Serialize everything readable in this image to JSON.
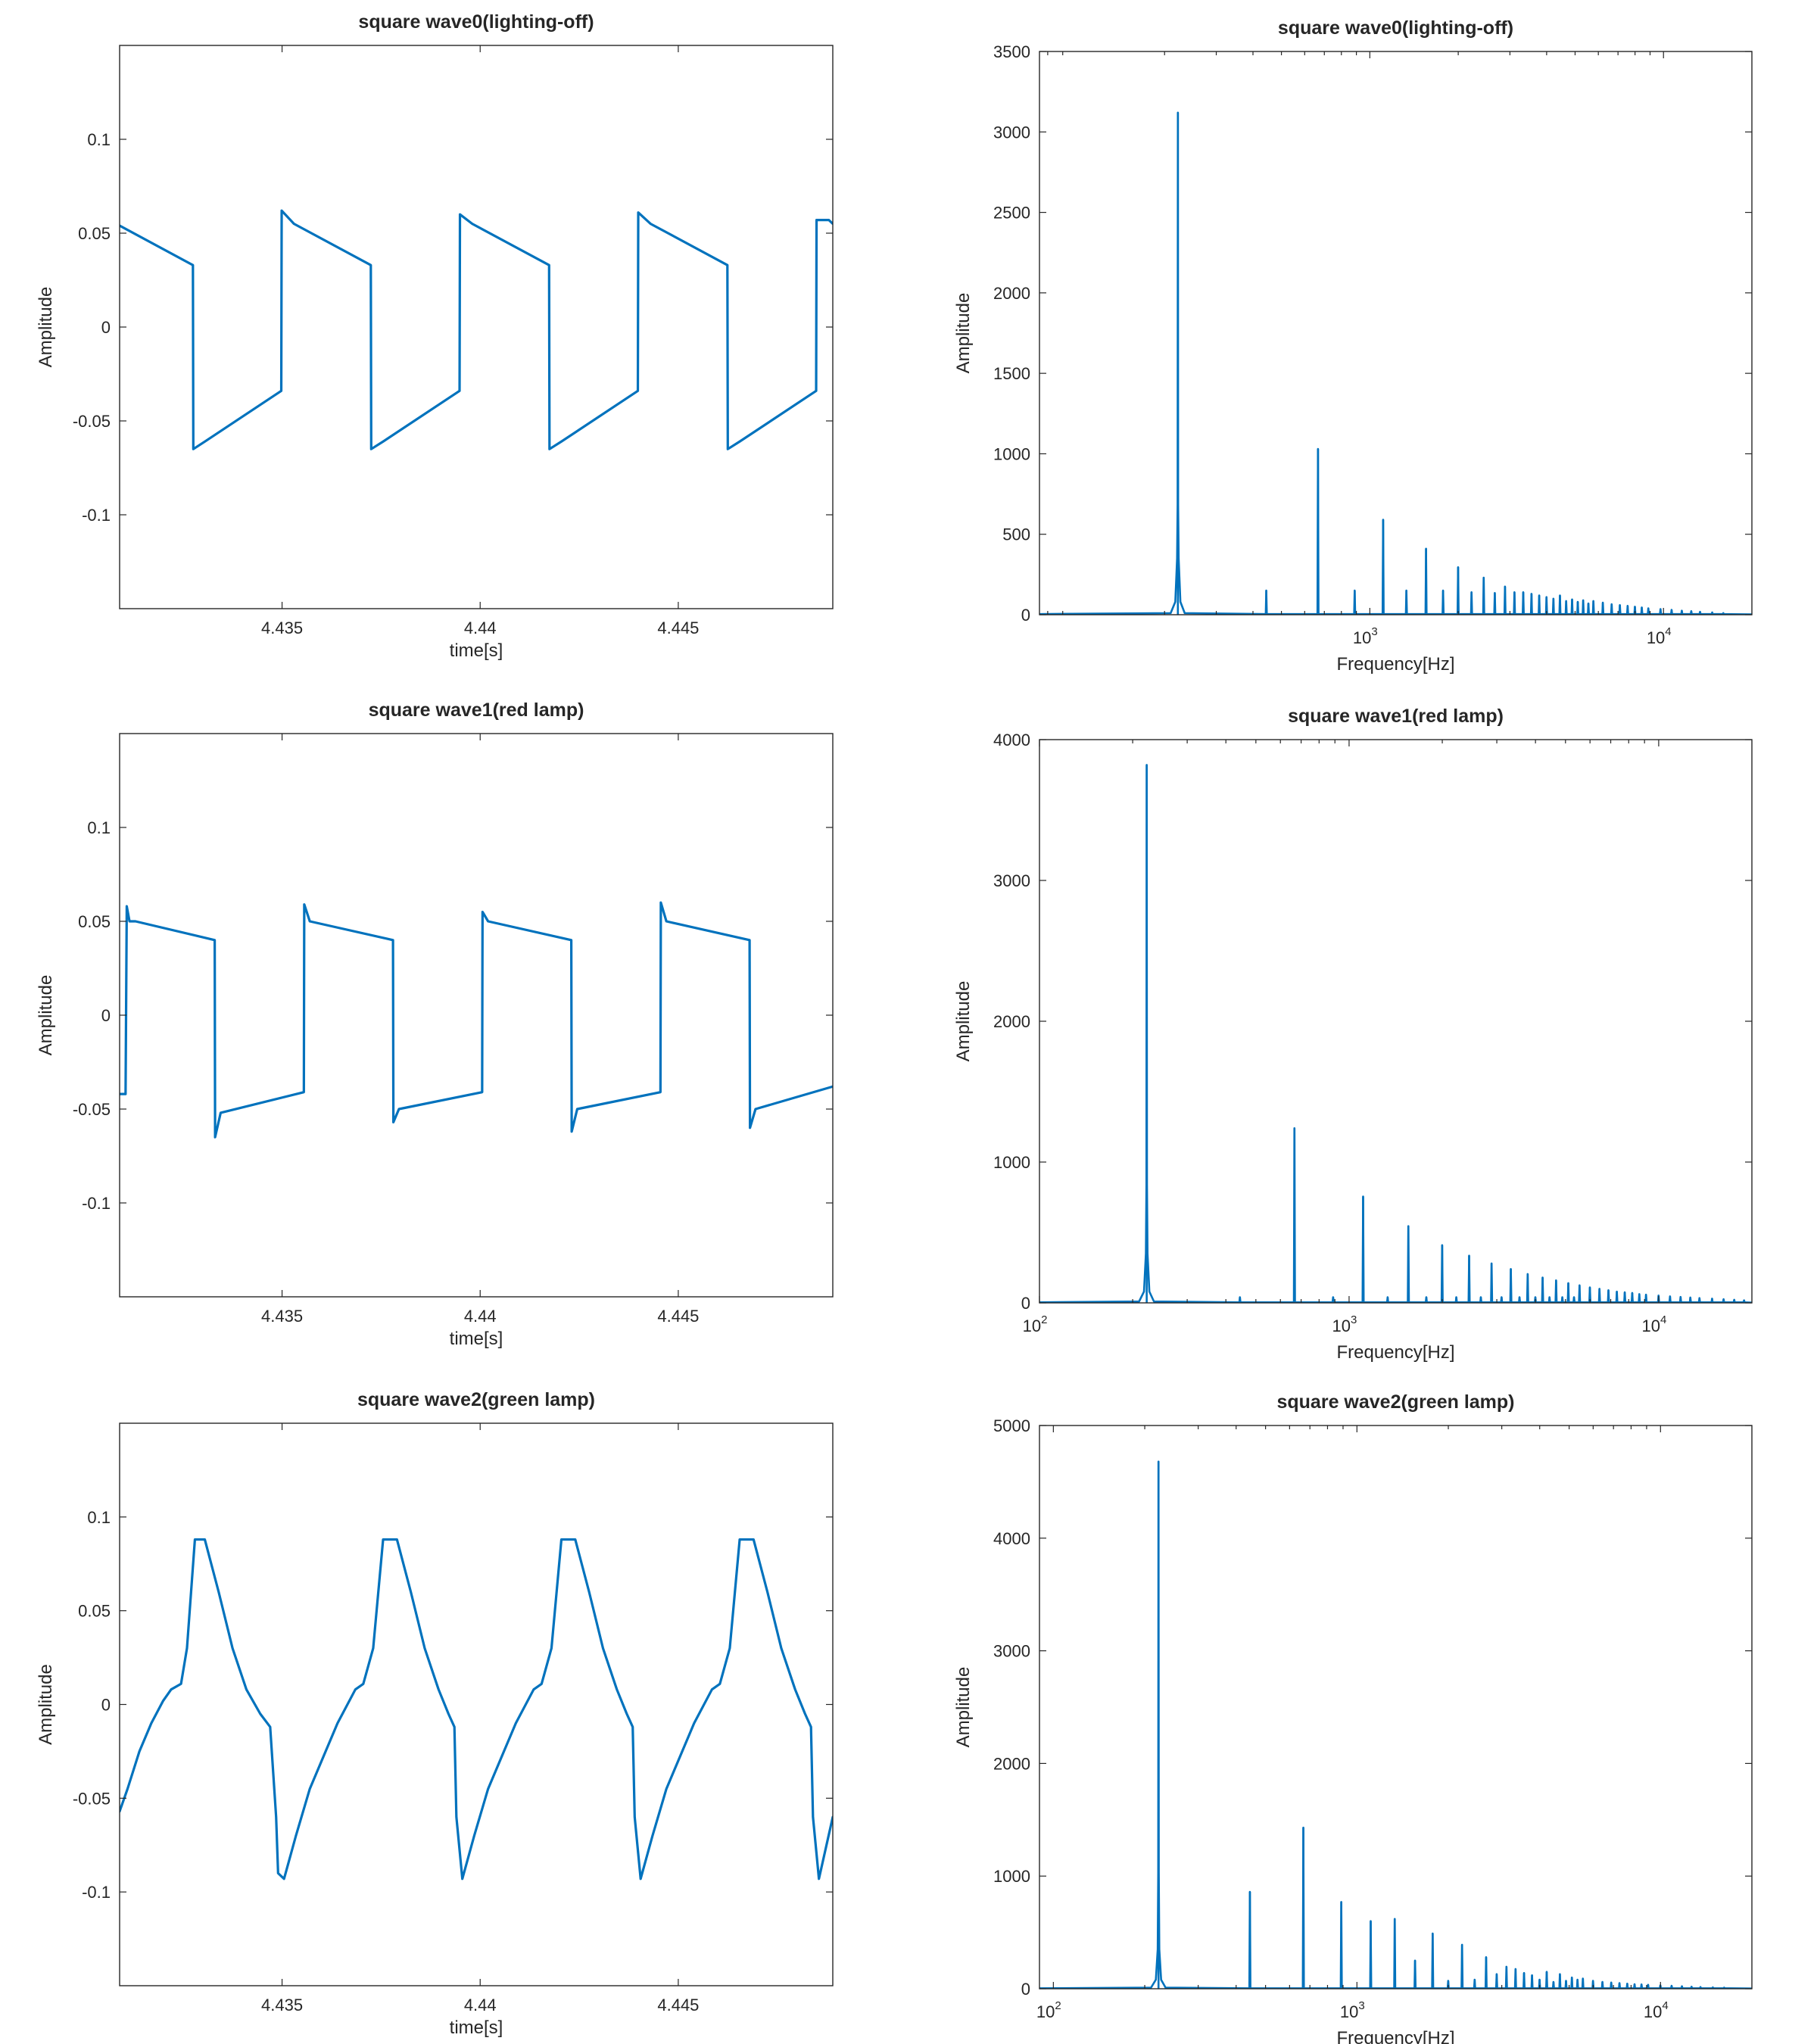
{
  "colors": {
    "series": "#0072BD",
    "axes": "#262626",
    "background": "#ffffff"
  },
  "chart_data": [
    {
      "type": "line",
      "title": "square wave0(lighting-off)",
      "xlabel": "time[s]",
      "ylabel": "Amplitude",
      "xlim": [
        4.4309,
        4.4489
      ],
      "ylim": [
        -0.15,
        0.15
      ],
      "xticks": [
        4.435,
        4.44,
        4.445
      ],
      "xtick_labels": [
        "4.435",
        "4.44",
        "4.445"
      ],
      "yticks": [
        -0.1,
        -0.05,
        0,
        0.05,
        0.1
      ],
      "ytick_labels": [
        "-0.1",
        "-0.05",
        "0",
        "0.05",
        "0.1"
      ],
      "grid": false,
      "series": [
        {
          "x": [
            4.4309,
            4.43275,
            4.43276,
            4.43305,
            4.43498,
            4.43499,
            4.4353,
            4.43724,
            4.43725,
            4.43755,
            4.43948,
            4.43949,
            4.4398,
            4.44174,
            4.44175,
            4.44205,
            4.44398,
            4.44399,
            4.4443,
            4.44624,
            4.44625,
            4.44655,
            4.44848,
            4.44849,
            4.4488,
            4.4489
          ],
          "y": [
            0.054,
            0.033,
            -0.065,
            -0.061,
            -0.034,
            0.062,
            0.055,
            0.033,
            -0.065,
            -0.061,
            -0.034,
            0.06,
            0.055,
            0.033,
            -0.065,
            -0.061,
            -0.034,
            0.061,
            0.055,
            0.033,
            -0.065,
            -0.061,
            -0.034,
            0.057,
            0.057,
            0.055
          ]
        }
      ]
    },
    {
      "type": "line",
      "title": "square wave0(lighting-off)",
      "xlabel": "Frequency[Hz]",
      "ylabel": "Amplitude",
      "xscale": "log",
      "xlim": [
        75,
        20000
      ],
      "ylim": [
        0,
        3500
      ],
      "xticks": [
        1000,
        10000
      ],
      "xtick_labels": [
        "10",
        "10"
      ],
      "xtick_exponents": [
        "3",
        "4"
      ],
      "yticks": [
        0,
        500,
        1000,
        1500,
        2000,
        2500,
        3000,
        3500
      ],
      "ytick_labels": [
        "0",
        "500",
        "1000",
        "1500",
        "2000",
        "2500",
        "3000",
        "3500"
      ],
      "grid": false,
      "fundamental_hz": 222,
      "peaks": [
        {
          "x": 222,
          "y": 3120
        },
        {
          "x": 444,
          "y": 150
        },
        {
          "x": 666,
          "y": 1030
        },
        {
          "x": 888,
          "y": 150
        },
        {
          "x": 1110,
          "y": 590
        },
        {
          "x": 1332,
          "y": 150
        },
        {
          "x": 1554,
          "y": 410
        },
        {
          "x": 1776,
          "y": 150
        },
        {
          "x": 1998,
          "y": 295
        },
        {
          "x": 2220,
          "y": 140
        },
        {
          "x": 2442,
          "y": 230
        },
        {
          "x": 2664,
          "y": 135
        },
        {
          "x": 2886,
          "y": 175
        },
        {
          "x": 3108,
          "y": 140
        },
        {
          "x": 3330,
          "y": 140
        },
        {
          "x": 3552,
          "y": 130
        },
        {
          "x": 3774,
          "y": 120
        },
        {
          "x": 3996,
          "y": 110
        },
        {
          "x": 4218,
          "y": 100
        },
        {
          "x": 4440,
          "y": 120
        },
        {
          "x": 4662,
          "y": 85
        },
        {
          "x": 4884,
          "y": 95
        },
        {
          "x": 5106,
          "y": 80
        },
        {
          "x": 5328,
          "y": 90
        },
        {
          "x": 5550,
          "y": 70
        },
        {
          "x": 5772,
          "y": 85
        },
        {
          "x": 6216,
          "y": 75
        },
        {
          "x": 6660,
          "y": 65
        },
        {
          "x": 7104,
          "y": 60
        },
        {
          "x": 7548,
          "y": 55
        },
        {
          "x": 7992,
          "y": 50
        },
        {
          "x": 8436,
          "y": 45
        },
        {
          "x": 8880,
          "y": 40
        },
        {
          "x": 9768,
          "y": 35
        },
        {
          "x": 10656,
          "y": 30
        },
        {
          "x": 11544,
          "y": 25
        },
        {
          "x": 12432,
          "y": 22
        },
        {
          "x": 13320,
          "y": 18
        },
        {
          "x": 14652,
          "y": 14
        },
        {
          "x": 15984,
          "y": 10
        }
      ]
    },
    {
      "type": "line",
      "title": "square wave1(red lamp)",
      "xlabel": "time[s]",
      "ylabel": "Amplitude",
      "xlim": [
        4.4309,
        4.4489
      ],
      "ylim": [
        -0.15,
        0.15
      ],
      "xticks": [
        4.435,
        4.44,
        4.445
      ],
      "xtick_labels": [
        "4.435",
        "4.44",
        "4.445"
      ],
      "yticks": [
        -0.1,
        -0.05,
        0,
        0.05,
        0.1
      ],
      "ytick_labels": [
        "-0.1",
        "-0.05",
        "0",
        "0.05",
        "0.1"
      ],
      "grid": false,
      "series": [
        {
          "x": [
            4.4309,
            4.43105,
            4.43108,
            4.43115,
            4.4313,
            4.4333,
            4.43331,
            4.43345,
            4.43555,
            4.43556,
            4.4357,
            4.4378,
            4.43781,
            4.43795,
            4.44005,
            4.44006,
            4.4402,
            4.4423,
            4.44231,
            4.44245,
            4.44455,
            4.44456,
            4.4447,
            4.4468,
            4.44681,
            4.44695,
            4.4489
          ],
          "y": [
            -0.042,
            -0.042,
            0.058,
            0.05,
            0.05,
            0.04,
            -0.065,
            -0.052,
            -0.041,
            0.059,
            0.05,
            0.04,
            -0.057,
            -0.05,
            -0.041,
            0.055,
            0.05,
            0.04,
            -0.062,
            -0.05,
            -0.041,
            0.06,
            0.05,
            0.04,
            -0.06,
            -0.05,
            -0.038
          ]
        }
      ]
    },
    {
      "type": "line",
      "title": "square wave1(red lamp)",
      "xlabel": "Frequency[Hz]",
      "ylabel": "Amplitude",
      "xscale": "log",
      "xlim": [
        100,
        20000
      ],
      "ylim": [
        0,
        4000
      ],
      "xticks": [
        100,
        1000,
        10000
      ],
      "xtick_labels": [
        "10",
        "10",
        "10"
      ],
      "xtick_exponents": [
        "2",
        "3",
        "4"
      ],
      "yticks": [
        0,
        1000,
        2000,
        3000,
        4000
      ],
      "ytick_labels": [
        "0",
        "1000",
        "2000",
        "3000",
        "4000"
      ],
      "grid": false,
      "fundamental_hz": 222,
      "peaks": [
        {
          "x": 222,
          "y": 3820
        },
        {
          "x": 444,
          "y": 40
        },
        {
          "x": 666,
          "y": 1240
        },
        {
          "x": 888,
          "y": 40
        },
        {
          "x": 1110,
          "y": 755
        },
        {
          "x": 1332,
          "y": 40
        },
        {
          "x": 1554,
          "y": 545
        },
        {
          "x": 1776,
          "y": 40
        },
        {
          "x": 1998,
          "y": 410
        },
        {
          "x": 2220,
          "y": 40
        },
        {
          "x": 2442,
          "y": 335
        },
        {
          "x": 2664,
          "y": 40
        },
        {
          "x": 2886,
          "y": 280
        },
        {
          "x": 3108,
          "y": 40
        },
        {
          "x": 3330,
          "y": 240
        },
        {
          "x": 3552,
          "y": 40
        },
        {
          "x": 3774,
          "y": 205
        },
        {
          "x": 3996,
          "y": 40
        },
        {
          "x": 4218,
          "y": 180
        },
        {
          "x": 4440,
          "y": 40
        },
        {
          "x": 4662,
          "y": 160
        },
        {
          "x": 4884,
          "y": 40
        },
        {
          "x": 5106,
          "y": 140
        },
        {
          "x": 5328,
          "y": 40
        },
        {
          "x": 5550,
          "y": 125
        },
        {
          "x": 5994,
          "y": 110
        },
        {
          "x": 6438,
          "y": 100
        },
        {
          "x": 6882,
          "y": 90
        },
        {
          "x": 7326,
          "y": 80
        },
        {
          "x": 7770,
          "y": 75
        },
        {
          "x": 8214,
          "y": 70
        },
        {
          "x": 8658,
          "y": 62
        },
        {
          "x": 9102,
          "y": 58
        },
        {
          "x": 9990,
          "y": 52
        },
        {
          "x": 10878,
          "y": 46
        },
        {
          "x": 11766,
          "y": 42
        },
        {
          "x": 12654,
          "y": 38
        },
        {
          "x": 13542,
          "y": 34
        },
        {
          "x": 14874,
          "y": 30
        },
        {
          "x": 16206,
          "y": 26
        },
        {
          "x": 17538,
          "y": 22
        },
        {
          "x": 18870,
          "y": 18
        }
      ]
    },
    {
      "type": "line",
      "title": "square wave2(green lamp)",
      "xlabel": "time[s]",
      "ylabel": "Amplitude",
      "xlim": [
        4.4309,
        4.4489
      ],
      "ylim": [
        -0.15,
        0.15
      ],
      "xticks": [
        4.435,
        4.44,
        4.445
      ],
      "xtick_labels": [
        "4.435",
        "4.44",
        "4.445"
      ],
      "yticks": [
        -0.1,
        -0.05,
        0,
        0.05,
        0.1
      ],
      "ytick_labels": [
        "-0.1",
        "-0.05",
        "0",
        "0.05",
        "0.1"
      ],
      "grid": false,
      "series": [
        {
          "x": [
            4.4309,
            4.4311,
            4.4314,
            4.4317,
            4.432,
            4.4322,
            4.43245,
            4.4326,
            4.4328,
            4.43305,
            4.4334,
            4.43375,
            4.4341,
            4.43445,
            4.4347,
            4.43485,
            4.4349,
            4.43505,
            4.43535,
            4.4357,
            4.4361,
            4.4364,
            4.43685,
            4.43705,
            4.4373,
            4.43755,
            4.4379,
            4.43825,
            4.4386,
            4.43895,
            4.4392,
            4.43935,
            4.4394,
            4.43955,
            4.43985,
            4.4402,
            4.4406,
            4.4409,
            4.44135,
            4.44155,
            4.4418,
            4.44205,
            4.4424,
            4.44275,
            4.4431,
            4.44345,
            4.4437,
            4.44385,
            4.4439,
            4.44405,
            4.44435,
            4.4447,
            4.4451,
            4.4454,
            4.44585,
            4.44605,
            4.4463,
            4.44655,
            4.4469,
            4.44725,
            4.4476,
            4.44795,
            4.4482,
            4.44835,
            4.4484,
            4.44855,
            4.4489
          ],
          "y": [
            -0.057,
            -0.045,
            -0.025,
            -0.01,
            0.002,
            0.008,
            0.011,
            0.03,
            0.088,
            0.088,
            0.06,
            0.03,
            0.008,
            -0.005,
            -0.012,
            -0.06,
            -0.09,
            -0.093,
            -0.07,
            -0.045,
            -0.025,
            -0.01,
            0.008,
            0.011,
            0.03,
            0.088,
            0.088,
            0.06,
            0.03,
            0.008,
            -0.005,
            -0.012,
            -0.06,
            -0.093,
            -0.07,
            -0.045,
            -0.025,
            -0.01,
            0.008,
            0.011,
            0.03,
            0.088,
            0.088,
            0.06,
            0.03,
            0.008,
            -0.005,
            -0.012,
            -0.06,
            -0.093,
            -0.07,
            -0.045,
            -0.025,
            -0.01,
            0.008,
            0.011,
            0.03,
            0.088,
            0.088,
            0.06,
            0.03,
            0.008,
            -0.005,
            -0.012,
            -0.06,
            -0.093,
            -0.06
          ]
        }
      ]
    },
    {
      "type": "line",
      "title": "square wave2(green lamp)",
      "xlabel": "Frequency[Hz]",
      "ylabel": "Amplitude",
      "xscale": "log",
      "xlim": [
        90,
        20000
      ],
      "ylim": [
        0,
        5000
      ],
      "xticks": [
        100,
        1000,
        10000
      ],
      "xtick_labels": [
        "10",
        "10",
        "10"
      ],
      "xtick_exponents": [
        "2",
        "3",
        "4"
      ],
      "yticks": [
        0,
        1000,
        2000,
        3000,
        4000,
        5000
      ],
      "ytick_labels": [
        "0",
        "1000",
        "2000",
        "3000",
        "4000",
        "5000"
      ],
      "grid": false,
      "fundamental_hz": 222,
      "peaks": [
        {
          "x": 222,
          "y": 4680
        },
        {
          "x": 444,
          "y": 860
        },
        {
          "x": 666,
          "y": 1430
        },
        {
          "x": 888,
          "y": 770
        },
        {
          "x": 1110,
          "y": 600
        },
        {
          "x": 1332,
          "y": 620
        },
        {
          "x": 1554,
          "y": 250
        },
        {
          "x": 1776,
          "y": 490
        },
        {
          "x": 1998,
          "y": 70
        },
        {
          "x": 2220,
          "y": 390
        },
        {
          "x": 2442,
          "y": 80
        },
        {
          "x": 2664,
          "y": 280
        },
        {
          "x": 2886,
          "y": 130
        },
        {
          "x": 3108,
          "y": 195
        },
        {
          "x": 3330,
          "y": 175
        },
        {
          "x": 3552,
          "y": 140
        },
        {
          "x": 3774,
          "y": 120
        },
        {
          "x": 3996,
          "y": 80
        },
        {
          "x": 4218,
          "y": 150
        },
        {
          "x": 4440,
          "y": 60
        },
        {
          "x": 4662,
          "y": 130
        },
        {
          "x": 4884,
          "y": 70
        },
        {
          "x": 5106,
          "y": 100
        },
        {
          "x": 5328,
          "y": 80
        },
        {
          "x": 5550,
          "y": 90
        },
        {
          "x": 5994,
          "y": 70
        },
        {
          "x": 6438,
          "y": 60
        },
        {
          "x": 6882,
          "y": 55
        },
        {
          "x": 7326,
          "y": 50
        },
        {
          "x": 7770,
          "y": 45
        },
        {
          "x": 8214,
          "y": 40
        },
        {
          "x": 8658,
          "y": 38
        },
        {
          "x": 9102,
          "y": 35
        },
        {
          "x": 9990,
          "y": 30
        },
        {
          "x": 10878,
          "y": 26
        },
        {
          "x": 11766,
          "y": 22
        },
        {
          "x": 12654,
          "y": 18
        },
        {
          "x": 13542,
          "y": 15
        },
        {
          "x": 14874,
          "y": 12
        },
        {
          "x": 16206,
          "y": 10
        }
      ]
    }
  ]
}
